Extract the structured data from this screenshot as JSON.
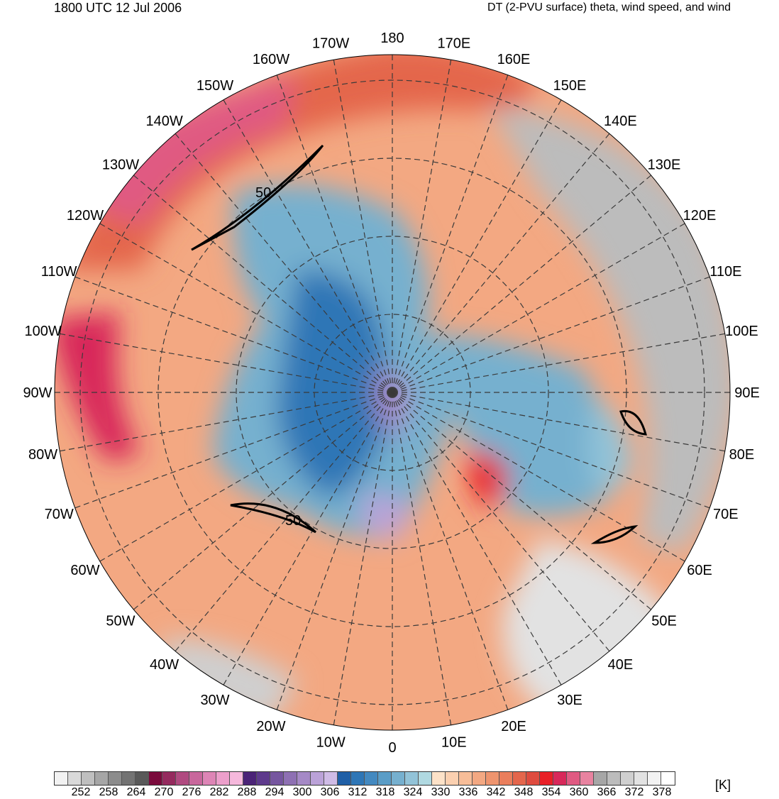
{
  "header": {
    "time": "1800 UTC 12 Jul 2006",
    "title": "DT (2-PVU surface) theta, wind speed, and wind"
  },
  "longitude_labels": [
    {
      "text": "180",
      "lon": 180
    },
    {
      "text": "170E",
      "lon": 170
    },
    {
      "text": "160E",
      "lon": 160
    },
    {
      "text": "150E",
      "lon": 150
    },
    {
      "text": "140E",
      "lon": 140
    },
    {
      "text": "130E",
      "lon": 130
    },
    {
      "text": "120E",
      "lon": 120
    },
    {
      "text": "110E",
      "lon": 110
    },
    {
      "text": "100E",
      "lon": 100
    },
    {
      "text": "90E",
      "lon": 90
    },
    {
      "text": "80E",
      "lon": 80
    },
    {
      "text": "70E",
      "lon": 70
    },
    {
      "text": "60E",
      "lon": 60
    },
    {
      "text": "50E",
      "lon": 50
    },
    {
      "text": "40E",
      "lon": 40
    },
    {
      "text": "30E",
      "lon": 30
    },
    {
      "text": "20E",
      "lon": 20
    },
    {
      "text": "10E",
      "lon": 10
    },
    {
      "text": "0",
      "lon": 0
    },
    {
      "text": "10W",
      "lon": -10
    },
    {
      "text": "20W",
      "lon": -20
    },
    {
      "text": "30W",
      "lon": -30
    },
    {
      "text": "40W",
      "lon": -40
    },
    {
      "text": "50W",
      "lon": -50
    },
    {
      "text": "60W",
      "lon": -60
    },
    {
      "text": "70W",
      "lon": -70
    },
    {
      "text": "80W",
      "lon": -80
    },
    {
      "text": "90W",
      "lon": -90
    },
    {
      "text": "100W",
      "lon": -100
    },
    {
      "text": "110W",
      "lon": -110
    },
    {
      "text": "120W",
      "lon": -120
    },
    {
      "text": "130W",
      "lon": -130
    },
    {
      "text": "140W",
      "lon": -140
    },
    {
      "text": "150W",
      "lon": -150
    },
    {
      "text": "160W",
      "lon": -160
    },
    {
      "text": "170W",
      "lon": -170
    }
  ],
  "contour_labels": [
    "50",
    "50"
  ],
  "colorbar": {
    "unit": "[K]",
    "tick_labels": [
      "252",
      "258",
      "264",
      "270",
      "276",
      "282",
      "288",
      "294",
      "300",
      "306",
      "312",
      "318",
      "324",
      "330",
      "336",
      "342",
      "348",
      "354",
      "360",
      "366",
      "372",
      "378"
    ],
    "colors": [
      "#f2f2f2",
      "#d9d9d9",
      "#bfbfbf",
      "#a6a6a6",
      "#8c8c8c",
      "#737373",
      "#595959",
      "#7a0a3c",
      "#952a5e",
      "#b04a80",
      "#c8679c",
      "#dd85b6",
      "#ec9fcb",
      "#f6b8dc",
      "#4b2377",
      "#5e3a8c",
      "#76569f",
      "#8e70b3",
      "#a589c6",
      "#bba2d8",
      "#cfbbe6",
      "#1f5fa6",
      "#2e76b6",
      "#4389c0",
      "#5a9dc7",
      "#76b0cf",
      "#92c3d8",
      "#b0d9e1",
      "#fde2c8",
      "#fbd0b0",
      "#f7bd98",
      "#f3a882",
      "#ee946e",
      "#ea7e5c",
      "#e4664c",
      "#de4b3f",
      "#e81f26",
      "#d8285a",
      "#e05a82",
      "#e883a0",
      "#a6a6a6",
      "#bcbcbc",
      "#cfcfcf",
      "#e2e2e2",
      "#f2f2f2",
      "#ffffff"
    ]
  }
}
